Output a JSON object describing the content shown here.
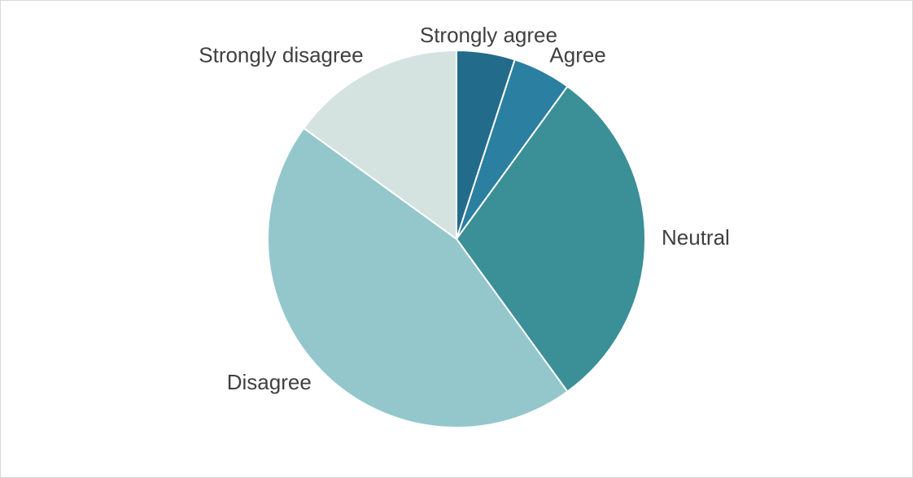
{
  "chart_data": {
    "type": "pie",
    "categories": [
      "Strongly agree",
      "Agree",
      "Neutral",
      "Disagree",
      "Strongly disagree"
    ],
    "values": [
      5,
      5,
      30,
      45,
      15
    ],
    "colors": [
      "#236b8a",
      "#2b7fa0",
      "#3b8f97",
      "#93c7cc",
      "#d5e3e0"
    ]
  }
}
